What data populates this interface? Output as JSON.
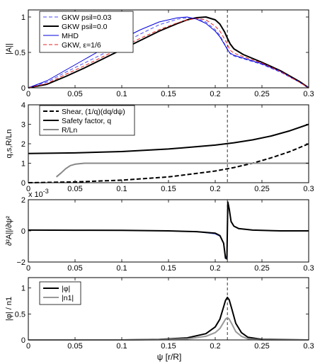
{
  "figure": {
    "xlabel": "ψ [r/R]"
  },
  "chart_data": [
    {
      "type": "line",
      "ylabel": "|A||",
      "xlim": [
        0,
        0.3
      ],
      "ylim": [
        0,
        1.1
      ],
      "xticks": [
        0,
        0.05,
        0.1,
        0.15,
        0.2,
        0.25,
        0.3
      ],
      "xtick_labels": [
        "0",
        "0.05",
        "0.1",
        "0.15",
        "0.2",
        "0.25",
        "0.3"
      ],
      "yticks": [
        0,
        0.5,
        1
      ],
      "ytick_labels": [
        "0",
        "0.5",
        "1"
      ],
      "legend_position": "top-left",
      "vline_x": 0.213,
      "series": [
        {
          "name": "GKW psil=0.03",
          "color": "#4a4aff",
          "style": "dashed",
          "x": [
            0.0,
            0.02,
            0.04,
            0.06,
            0.08,
            0.1,
            0.12,
            0.14,
            0.16,
            0.17,
            0.18,
            0.19,
            0.2,
            0.205,
            0.21,
            0.213,
            0.216,
            0.22,
            0.23,
            0.25,
            0.27,
            0.29,
            0.3
          ],
          "y": [
            0.0,
            0.08,
            0.22,
            0.35,
            0.48,
            0.62,
            0.76,
            0.89,
            0.97,
            0.99,
            0.98,
            0.93,
            0.82,
            0.74,
            0.62,
            0.55,
            0.48,
            0.45,
            0.41,
            0.33,
            0.22,
            0.08,
            0.0
          ]
        },
        {
          "name": "GKW psil=0.0",
          "color": "#000000",
          "style": "solid-thick",
          "x": [
            0.0,
            0.02,
            0.04,
            0.06,
            0.08,
            0.1,
            0.12,
            0.14,
            0.16,
            0.17,
            0.18,
            0.19,
            0.2,
            0.205,
            0.21,
            0.213,
            0.216,
            0.22,
            0.23,
            0.25,
            0.27,
            0.29,
            0.3
          ],
          "y": [
            0.0,
            0.05,
            0.16,
            0.28,
            0.41,
            0.54,
            0.67,
            0.8,
            0.91,
            0.96,
            0.99,
            1.0,
            0.96,
            0.9,
            0.79,
            0.7,
            0.62,
            0.55,
            0.47,
            0.36,
            0.24,
            0.09,
            0.0
          ]
        },
        {
          "name": "MHD",
          "color": "#0000dd",
          "style": "solid",
          "x": [
            0.0,
            0.02,
            0.04,
            0.06,
            0.08,
            0.1,
            0.12,
            0.14,
            0.16,
            0.17,
            0.18,
            0.19,
            0.2,
            0.205,
            0.21,
            0.213,
            0.216,
            0.22,
            0.23,
            0.25,
            0.27,
            0.29,
            0.3
          ],
          "y": [
            0.0,
            0.1,
            0.25,
            0.4,
            0.55,
            0.69,
            0.82,
            0.93,
            0.99,
            1.0,
            0.97,
            0.91,
            0.8,
            0.72,
            0.61,
            0.54,
            0.49,
            0.46,
            0.42,
            0.34,
            0.23,
            0.08,
            0.0
          ]
        },
        {
          "name": "GKW, ε=1/6",
          "color": "#ee2222",
          "style": "dashed",
          "x": [
            0.0,
            0.02,
            0.04,
            0.06,
            0.08,
            0.1,
            0.12,
            0.14,
            0.16,
            0.17,
            0.18,
            0.19,
            0.2,
            0.205,
            0.21,
            0.213,
            0.216,
            0.22,
            0.23,
            0.25,
            0.27,
            0.29,
            0.3
          ],
          "y": [
            0.0,
            0.06,
            0.19,
            0.31,
            0.44,
            0.57,
            0.7,
            0.82,
            0.92,
            0.96,
            0.98,
            0.96,
            0.87,
            0.8,
            0.69,
            0.61,
            0.53,
            0.49,
            0.44,
            0.35,
            0.23,
            0.08,
            0.0
          ]
        }
      ]
    },
    {
      "type": "line",
      "ylabel": "q,s,R/Ln",
      "xlim": [
        0,
        0.3
      ],
      "ylim": [
        0,
        4
      ],
      "xticks": [
        0,
        0.05,
        0.1,
        0.15,
        0.2,
        0.25,
        0.3
      ],
      "xtick_labels": [
        "0",
        "0.05",
        "0.1",
        "0.15",
        "0.2",
        "0.25",
        "0.3"
      ],
      "yticks": [
        0,
        1,
        2,
        3,
        4
      ],
      "ytick_labels": [
        "0",
        "1",
        "2",
        "3",
        "4"
      ],
      "legend_position": "top-left",
      "vline_x": 0.213,
      "series": [
        {
          "name": "Shear, (1/q)(dq/dψ)",
          "color": "#000000",
          "style": "dashed-thick",
          "x": [
            0.0,
            0.05,
            0.1,
            0.15,
            0.2,
            0.22,
            0.24,
            0.26,
            0.28,
            0.3
          ],
          "y": [
            0.0,
            0.04,
            0.13,
            0.3,
            0.6,
            0.78,
            1.0,
            1.28,
            1.6,
            2.0
          ]
        },
        {
          "name": "Safety factor, q",
          "color": "#000000",
          "style": "solid-thick",
          "x": [
            0.0,
            0.05,
            0.1,
            0.15,
            0.2,
            0.22,
            0.24,
            0.26,
            0.28,
            0.3
          ],
          "y": [
            1.5,
            1.53,
            1.6,
            1.73,
            1.93,
            2.05,
            2.2,
            2.4,
            2.67,
            3.0
          ]
        },
        {
          "name": "R/Ln",
          "color": "#888888",
          "style": "solid-thick",
          "x": [
            0.03,
            0.035,
            0.04,
            0.045,
            0.05,
            0.055,
            0.06,
            0.08,
            0.1,
            0.3
          ],
          "y": [
            0.3,
            0.5,
            0.72,
            0.88,
            0.95,
            0.98,
            1.0,
            1.0,
            1.0,
            1.0
          ]
        }
      ]
    },
    {
      "type": "line",
      "ylabel": "∂²A||/∂ψ²",
      "multiplier_label": "x 10",
      "multiplier_exponent": "-3",
      "xlim": [
        0,
        0.3
      ],
      "ylim": [
        -2,
        2
      ],
      "xticks": [
        0,
        0.05,
        0.1,
        0.15,
        0.2,
        0.25,
        0.3
      ],
      "xtick_labels": [
        "0",
        "0.05",
        "0.1",
        "0.15",
        "0.2",
        "0.25",
        "0.3"
      ],
      "yticks": [
        -2,
        0,
        2
      ],
      "ytick_labels": [
        "−2",
        "0",
        "2"
      ],
      "vline_x": 0.213,
      "series": [
        {
          "color": "#3355ff",
          "style": "solid",
          "x": [
            0.0,
            0.05,
            0.1,
            0.15,
            0.18,
            0.2,
            0.205,
            0.209,
            0.211,
            0.2125,
            0.2135,
            0.215,
            0.217,
            0.22,
            0.225,
            0.24,
            0.27,
            0.3
          ],
          "y": [
            0.05,
            0.04,
            0.03,
            0.0,
            -0.05,
            -0.2,
            -0.35,
            -0.8,
            -1.6,
            -1.75,
            1.7,
            1.3,
            0.6,
            0.3,
            0.15,
            0.05,
            0.0,
            0.0
          ]
        },
        {
          "color": "#000000",
          "style": "solid-thick",
          "x": [
            0.0,
            0.05,
            0.1,
            0.15,
            0.18,
            0.2,
            0.205,
            0.209,
            0.211,
            0.2125,
            0.2135,
            0.215,
            0.217,
            0.22,
            0.225,
            0.24,
            0.27,
            0.3
          ],
          "y": [
            0.05,
            0.04,
            0.03,
            0.0,
            -0.05,
            -0.15,
            -0.3,
            -0.8,
            -1.75,
            -1.8,
            1.85,
            1.4,
            0.6,
            0.3,
            0.15,
            0.05,
            0.0,
            0.0
          ]
        }
      ]
    },
    {
      "type": "line",
      "ylabel": "|φ| / n1",
      "xlim": [
        0,
        0.3
      ],
      "ylim": [
        0,
        1.2
      ],
      "xticks": [
        0,
        0.05,
        0.1,
        0.15,
        0.2,
        0.25,
        0.3
      ],
      "xtick_labels": [
        "0",
        "0.05",
        "0.1",
        "0.15",
        "0.2",
        "0.25",
        "0.3"
      ],
      "yticks": [
        0,
        0.5,
        1
      ],
      "ytick_labels": [
        "0",
        "0.5",
        "1"
      ],
      "legend_position": "top-left",
      "vline_x": 0.213,
      "series": [
        {
          "name": "|φ|",
          "color": "#000000",
          "style": "solid-thick",
          "x": [
            0.0,
            0.1,
            0.14,
            0.17,
            0.19,
            0.2,
            0.205,
            0.208,
            0.211,
            0.213,
            0.215,
            0.218,
            0.222,
            0.228,
            0.235,
            0.25,
            0.3
          ],
          "y": [
            0.0,
            0.0,
            0.01,
            0.04,
            0.12,
            0.25,
            0.4,
            0.58,
            0.76,
            0.82,
            0.77,
            0.58,
            0.32,
            0.14,
            0.05,
            0.01,
            0.0
          ]
        },
        {
          "name": "|n1|",
          "color": "#999999",
          "style": "solid-thick",
          "x": [
            0.0,
            0.1,
            0.14,
            0.17,
            0.19,
            0.2,
            0.205,
            0.208,
            0.211,
            0.213,
            0.215,
            0.218,
            0.222,
            0.228,
            0.235,
            0.25,
            0.3
          ],
          "y": [
            0.0,
            0.0,
            0.005,
            0.02,
            0.07,
            0.14,
            0.22,
            0.31,
            0.4,
            0.43,
            0.4,
            0.3,
            0.16,
            0.07,
            0.02,
            0.0,
            0.0
          ]
        }
      ]
    }
  ]
}
